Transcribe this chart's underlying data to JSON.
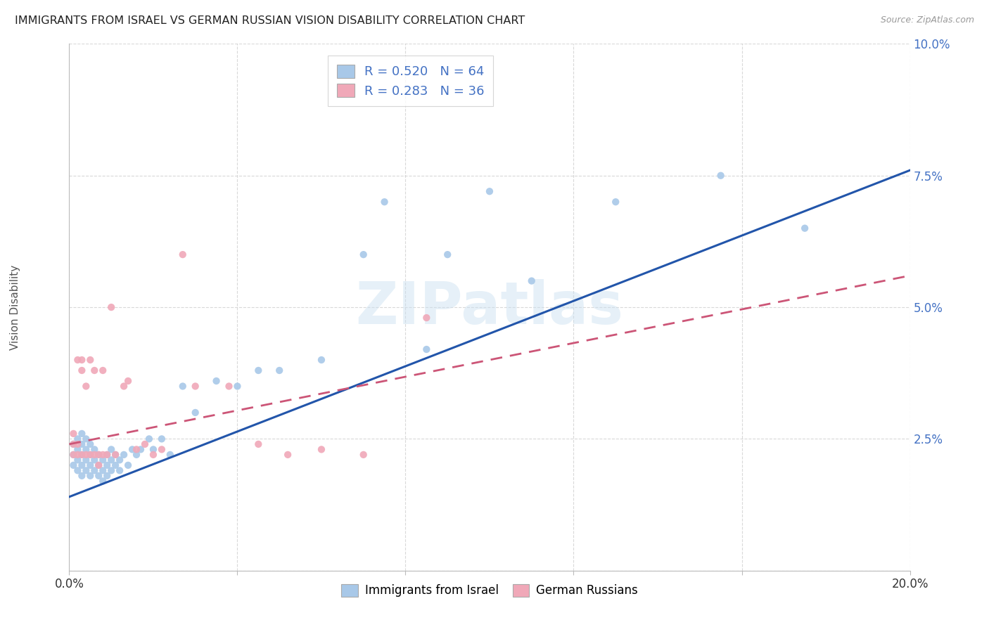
{
  "title": "IMMIGRANTS FROM ISRAEL VS GERMAN RUSSIAN VISION DISABILITY CORRELATION CHART",
  "source": "Source: ZipAtlas.com",
  "ylabel": "Vision Disability",
  "watermark": "ZIPatlas",
  "blue_R": 0.52,
  "blue_N": 64,
  "pink_R": 0.283,
  "pink_N": 36,
  "blue_color": "#a8c8e8",
  "pink_color": "#f0a8b8",
  "blue_line_color": "#2255aa",
  "pink_line_color": "#cc5577",
  "grid_color": "#d0d0d0",
  "title_color": "#222222",
  "axis_label_color": "#4472c4",
  "legend_text_color": "#4472c4",
  "background_color": "#ffffff",
  "xlim": [
    0.0,
    0.2
  ],
  "ylim": [
    0.0,
    0.1
  ],
  "blue_line_x0": 0.0,
  "blue_line_y0": 0.014,
  "blue_line_x1": 0.2,
  "blue_line_y1": 0.076,
  "pink_line_x0": 0.0,
  "pink_line_y0": 0.024,
  "pink_line_x1": 0.2,
  "pink_line_y1": 0.056,
  "blue_x": [
    0.001,
    0.001,
    0.001,
    0.002,
    0.002,
    0.002,
    0.002,
    0.003,
    0.003,
    0.003,
    0.003,
    0.003,
    0.004,
    0.004,
    0.004,
    0.004,
    0.005,
    0.005,
    0.005,
    0.005,
    0.006,
    0.006,
    0.006,
    0.007,
    0.007,
    0.007,
    0.008,
    0.008,
    0.008,
    0.009,
    0.009,
    0.009,
    0.01,
    0.01,
    0.01,
    0.011,
    0.011,
    0.012,
    0.012,
    0.013,
    0.014,
    0.015,
    0.016,
    0.017,
    0.019,
    0.02,
    0.022,
    0.024,
    0.027,
    0.03,
    0.035,
    0.04,
    0.045,
    0.05,
    0.06,
    0.07,
    0.075,
    0.085,
    0.09,
    0.1,
    0.11,
    0.13,
    0.155,
    0.175
  ],
  "blue_y": [
    0.02,
    0.022,
    0.024,
    0.019,
    0.021,
    0.023,
    0.025,
    0.018,
    0.02,
    0.022,
    0.024,
    0.026,
    0.019,
    0.021,
    0.023,
    0.025,
    0.018,
    0.02,
    0.022,
    0.024,
    0.019,
    0.021,
    0.023,
    0.018,
    0.02,
    0.022,
    0.017,
    0.019,
    0.021,
    0.018,
    0.02,
    0.022,
    0.019,
    0.021,
    0.023,
    0.02,
    0.022,
    0.019,
    0.021,
    0.022,
    0.02,
    0.023,
    0.022,
    0.023,
    0.025,
    0.023,
    0.025,
    0.022,
    0.035,
    0.03,
    0.036,
    0.035,
    0.038,
    0.038,
    0.04,
    0.06,
    0.07,
    0.042,
    0.06,
    0.072,
    0.055,
    0.07,
    0.075,
    0.065
  ],
  "pink_x": [
    0.001,
    0.001,
    0.001,
    0.002,
    0.002,
    0.002,
    0.003,
    0.003,
    0.003,
    0.004,
    0.004,
    0.005,
    0.005,
    0.006,
    0.006,
    0.007,
    0.007,
    0.008,
    0.008,
    0.009,
    0.01,
    0.011,
    0.013,
    0.014,
    0.016,
    0.018,
    0.02,
    0.022,
    0.027,
    0.03,
    0.038,
    0.045,
    0.052,
    0.06,
    0.07,
    0.085
  ],
  "pink_y": [
    0.022,
    0.024,
    0.026,
    0.022,
    0.024,
    0.04,
    0.022,
    0.038,
    0.04,
    0.022,
    0.035,
    0.04,
    0.022,
    0.022,
    0.038,
    0.02,
    0.022,
    0.022,
    0.038,
    0.022,
    0.05,
    0.022,
    0.035,
    0.036,
    0.023,
    0.024,
    0.022,
    0.023,
    0.06,
    0.035,
    0.035,
    0.024,
    0.022,
    0.023,
    0.022,
    0.048
  ]
}
